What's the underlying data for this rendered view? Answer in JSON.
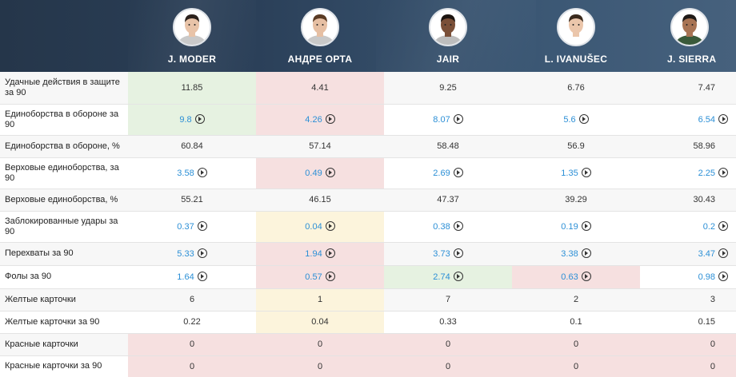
{
  "players": [
    {
      "name": "J. MODER",
      "avatar_icon": "player-photo-icon",
      "skin": "#e8c3a8",
      "hair": "#2b211c",
      "shirt": "#c9c9c9"
    },
    {
      "name": "АНДРЕ ОРТА",
      "avatar_icon": "player-photo-icon",
      "skin": "#e6bfa3",
      "hair": "#5a3b24",
      "shirt": "#c8c8c8"
    },
    {
      "name": "JAIR",
      "avatar_icon": "player-photo-icon",
      "skin": "#7a4f38",
      "hair": "#1b1410",
      "shirt": "#bdbdbd"
    },
    {
      "name": "L. IVANUŠEC",
      "avatar_icon": "player-photo-icon",
      "skin": "#ebc6ab",
      "hair": "#3a2a1d",
      "shirt": "#ffffff"
    },
    {
      "name": "J. SIERRA",
      "avatar_icon": "player-photo-icon",
      "skin": "#a87454",
      "hair": "#1f1a17",
      "shirt": "#3a5a3a"
    }
  ],
  "colors": {
    "header_dark": "#25364a",
    "link_blue": "#2b8fd6",
    "highlight_green": "#e6f2e1",
    "highlight_red": "#f6e0e0",
    "highlight_yellow": "#fcf4dc"
  },
  "rows": [
    {
      "label": "Удачные действия в защите за 90",
      "height": 40,
      "link": false,
      "values": [
        "11.85",
        "4.41",
        "9.25",
        "6.76",
        "7.47"
      ],
      "hl": [
        "green",
        "red",
        "none",
        "none",
        "none"
      ]
    },
    {
      "label": "Единоборства в обороне за 90",
      "height": 39,
      "link": true,
      "values": [
        "9.8",
        "4.26",
        "8.07",
        "5.6",
        "6.54"
      ],
      "hl": [
        "green",
        "red",
        "none",
        "none",
        "none"
      ]
    },
    {
      "label": "Единоборства в обороне, %",
      "height": 28,
      "link": false,
      "values": [
        "60.84",
        "57.14",
        "58.48",
        "56.9",
        "58.96"
      ],
      "hl": [
        "none",
        "none",
        "none",
        "none",
        "none"
      ]
    },
    {
      "label": "Верховые единоборства, за 90",
      "height": 39,
      "link": true,
      "values": [
        "3.58",
        "0.49",
        "2.69",
        "1.35",
        "2.25"
      ],
      "hl": [
        "none",
        "red",
        "none",
        "none",
        "none"
      ]
    },
    {
      "label": "Верховые единоборства, %",
      "height": 28,
      "link": false,
      "values": [
        "55.21",
        "46.15",
        "47.37",
        "39.29",
        "30.43"
      ],
      "hl": [
        "none",
        "none",
        "none",
        "none",
        "none"
      ]
    },
    {
      "label": "Заблокированные удары за 90",
      "height": 39,
      "link": true,
      "values": [
        "0.37",
        "0.04",
        "0.38",
        "0.19",
        "0.2"
      ],
      "hl": [
        "none",
        "yellow",
        "none",
        "none",
        "none"
      ]
    },
    {
      "label": "Перехваты за 90",
      "height": 29,
      "link": true,
      "values": [
        "5.33",
        "1.94",
        "3.73",
        "3.38",
        "3.47"
      ],
      "hl": [
        "none",
        "red",
        "none",
        "none",
        "none"
      ]
    },
    {
      "label": "Фолы за 90",
      "height": 29,
      "link": true,
      "values": [
        "1.64",
        "0.57",
        "2.74",
        "0.63",
        "0.98"
      ],
      "hl": [
        "none",
        "red",
        "green",
        "red",
        "none"
      ]
    },
    {
      "label": "Желтые карточки",
      "height": 28,
      "link": false,
      "values": [
        "6",
        "1",
        "7",
        "2",
        "3"
      ],
      "hl": [
        "none",
        "yellow",
        "none",
        "none",
        "none"
      ]
    },
    {
      "label": "Желтые карточки за 90",
      "height": 28,
      "link": false,
      "values": [
        "0.22",
        "0.04",
        "0.33",
        "0.1",
        "0.15"
      ],
      "hl": [
        "none",
        "yellow",
        "none",
        "none",
        "none"
      ]
    },
    {
      "label": "Красные карточки",
      "height": 28,
      "link": false,
      "values": [
        "0",
        "0",
        "0",
        "0",
        "0"
      ],
      "hl": [
        "red",
        "red",
        "red",
        "red",
        "red"
      ]
    },
    {
      "label": "Красные карточки за 90",
      "height": 27,
      "link": false,
      "values": [
        "0",
        "0",
        "0",
        "0",
        "0"
      ],
      "hl": [
        "red",
        "red",
        "red",
        "red",
        "red"
      ]
    }
  ]
}
